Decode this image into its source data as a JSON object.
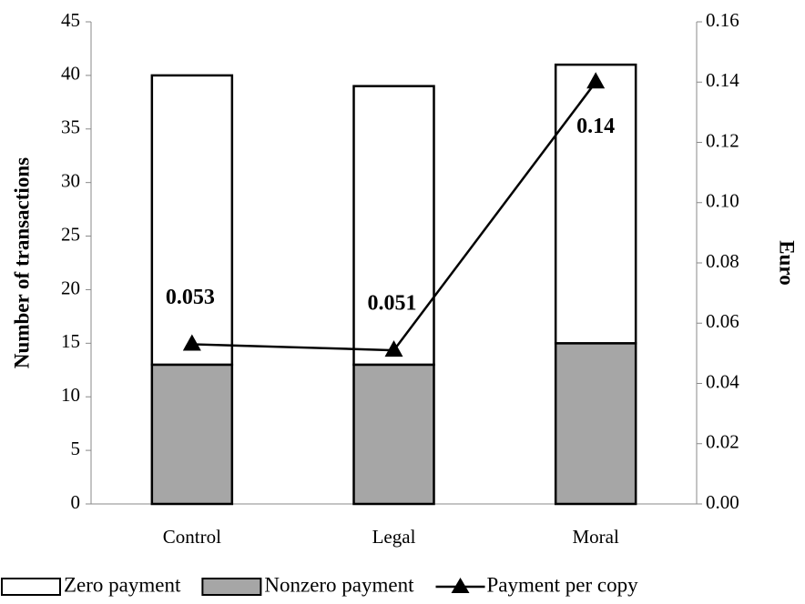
{
  "chart_data": {
    "type": "bar",
    "categories": [
      "Control",
      "Legal",
      "Moral"
    ],
    "series": [
      {
        "name": "Zero payment",
        "color": "#ffffff",
        "values": [
          27,
          26,
          26
        ],
        "stack": true
      },
      {
        "name": "Nonzero payment",
        "color": "#a6a6a6",
        "values": [
          13,
          13,
          15
        ],
        "stack": true
      },
      {
        "name": "Payment per copy",
        "color": "#000000",
        "type": "line",
        "axis": "y2",
        "values": [
          0.053,
          0.051,
          0.14
        ]
      }
    ],
    "ylabel": "Number of transactions",
    "y2label": "Euro",
    "ylim": [
      0,
      45
    ],
    "yticks": [
      0,
      5,
      10,
      15,
      20,
      25,
      30,
      35,
      40,
      45
    ],
    "y2lim": [
      0,
      0.16
    ],
    "y2ticks": [
      {
        "value": 0,
        "label": "0.00"
      },
      0.02,
      0.04,
      0.06,
      0.08,
      {
        "value": 0.1,
        "label": "0.10"
      },
      0.12,
      0.14,
      0.16
    ],
    "legend": "bottom"
  }
}
